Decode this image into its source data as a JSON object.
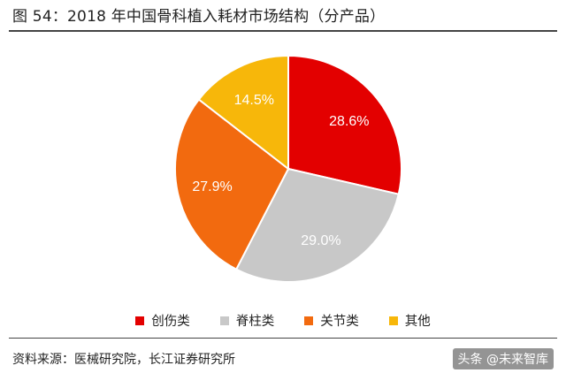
{
  "figure_title": "图 54：2018 年中国骨科植入耗材市场结构（分产品）",
  "source_text": "资料来源：医械研究院，长江证券研究所",
  "watermark": "头条 @未来智库",
  "chart_data": {
    "type": "pie",
    "title": "",
    "legend_position": "bottom",
    "slices": [
      {
        "name": "创伤类",
        "value": 28.6,
        "label": "28.6%",
        "color": "#e30000"
      },
      {
        "name": "脊柱类",
        "value": 29.0,
        "label": "29.0%",
        "color": "#c8c8c8"
      },
      {
        "name": "关节类",
        "value": 27.9,
        "label": "27.9%",
        "color": "#f26a0f"
      },
      {
        "name": "其他",
        "value": 14.5,
        "label": "14.5%",
        "color": "#f7b70a"
      }
    ]
  }
}
